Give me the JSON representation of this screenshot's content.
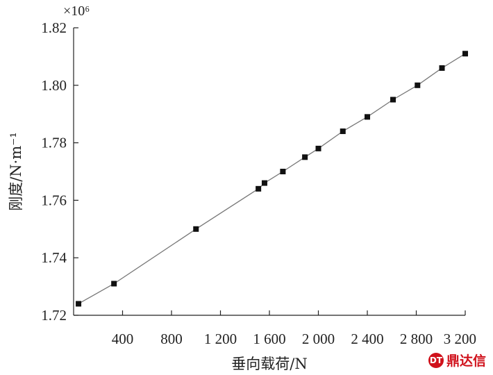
{
  "chart_data": {
    "type": "line",
    "xlabel": "垂向载荷/N",
    "ylabel": "刚度/N·m⁻¹",
    "y_multiplier_label": "×10⁶",
    "x_ticks": [
      {
        "value": 400,
        "label": "400"
      },
      {
        "value": 800,
        "label": "800"
      },
      {
        "value": 1200,
        "label": "1 200"
      },
      {
        "value": 1600,
        "label": "1 600"
      },
      {
        "value": 2000,
        "label": "2 000"
      },
      {
        "value": 2400,
        "label": "2 400"
      },
      {
        "value": 2800,
        "label": "2 800"
      },
      {
        "value": 3200,
        "label": "3 200"
      }
    ],
    "y_ticks": [
      {
        "value": 1.72,
        "label": "1.72"
      },
      {
        "value": 1.74,
        "label": "1.74"
      },
      {
        "value": 1.76,
        "label": "1.76"
      },
      {
        "value": 1.78,
        "label": "1.78"
      },
      {
        "value": 1.8,
        "label": "1.80"
      },
      {
        "value": 1.82,
        "label": "1.82"
      }
    ],
    "xlim": [
      0,
      3200
    ],
    "ylim": [
      1.72,
      1.82
    ],
    "grid": false,
    "series": [
      {
        "marker": "square",
        "color": "#111111",
        "line_color": "#777777",
        "x": [
          40,
          330,
          1000,
          1510,
          1560,
          1710,
          1890,
          2000,
          2200,
          2400,
          2610,
          2810,
          3010,
          3200
        ],
        "values": [
          1.724,
          1.731,
          1.75,
          1.764,
          1.766,
          1.77,
          1.775,
          1.778,
          1.784,
          1.789,
          1.795,
          1.8,
          1.806,
          1.811
        ]
      }
    ]
  },
  "watermark": {
    "logo": "DT",
    "text": "鼎达信"
  }
}
